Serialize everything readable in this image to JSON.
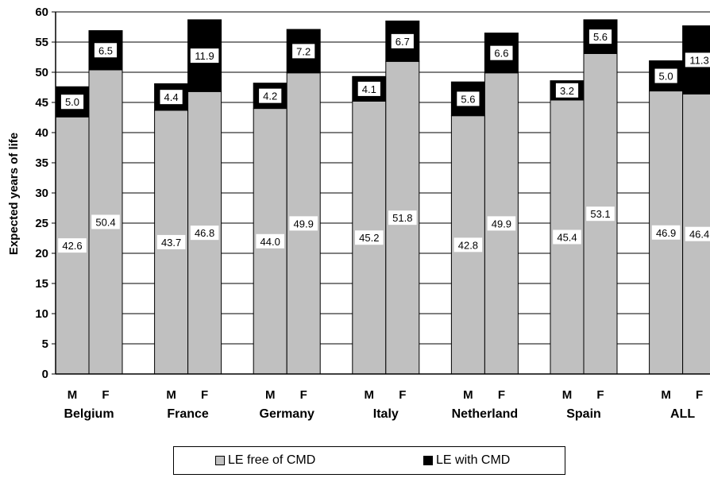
{
  "chart_data": {
    "type": "bar",
    "stacked": true,
    "ylabel": "Expected years of life",
    "ylim": [
      0,
      60
    ],
    "yticks": [
      0,
      5,
      10,
      15,
      20,
      25,
      30,
      35,
      40,
      45,
      50,
      55,
      60
    ],
    "grid": true,
    "legend_position": "bottom",
    "groups": [
      "Belgium",
      "France",
      "Germany",
      "Italy",
      "Netherland",
      "Spain",
      "ALL"
    ],
    "sexes": [
      "M",
      "F"
    ],
    "series": [
      {
        "name": "LE free of CMD",
        "color": "#c0c0c0",
        "values": [
          42.6,
          50.4,
          43.7,
          46.8,
          44.0,
          49.9,
          45.2,
          51.8,
          42.8,
          49.9,
          45.4,
          53.1,
          46.9,
          46.4
        ]
      },
      {
        "name": "LE with CMD",
        "color": "#000000",
        "values": [
          5.0,
          6.5,
          4.4,
          11.9,
          4.2,
          7.2,
          4.1,
          6.7,
          5.6,
          6.6,
          3.2,
          5.6,
          5.0,
          11.3
        ]
      }
    ],
    "labels_free": [
      "42.6",
      "50.4",
      "43.7",
      "46.8",
      "44.0",
      "49.9",
      "45.2",
      "51.8",
      "42.8",
      "49.9",
      "45.4",
      "53.1",
      "46.9",
      "46.4"
    ],
    "labels_with": [
      "5.0",
      "6.5",
      "4.4",
      "11.9",
      "4.2",
      "7.2",
      "4.1",
      "6.7",
      "5.6",
      "6.6",
      "3.2",
      "5.6",
      "5.0",
      "11.3"
    ]
  }
}
